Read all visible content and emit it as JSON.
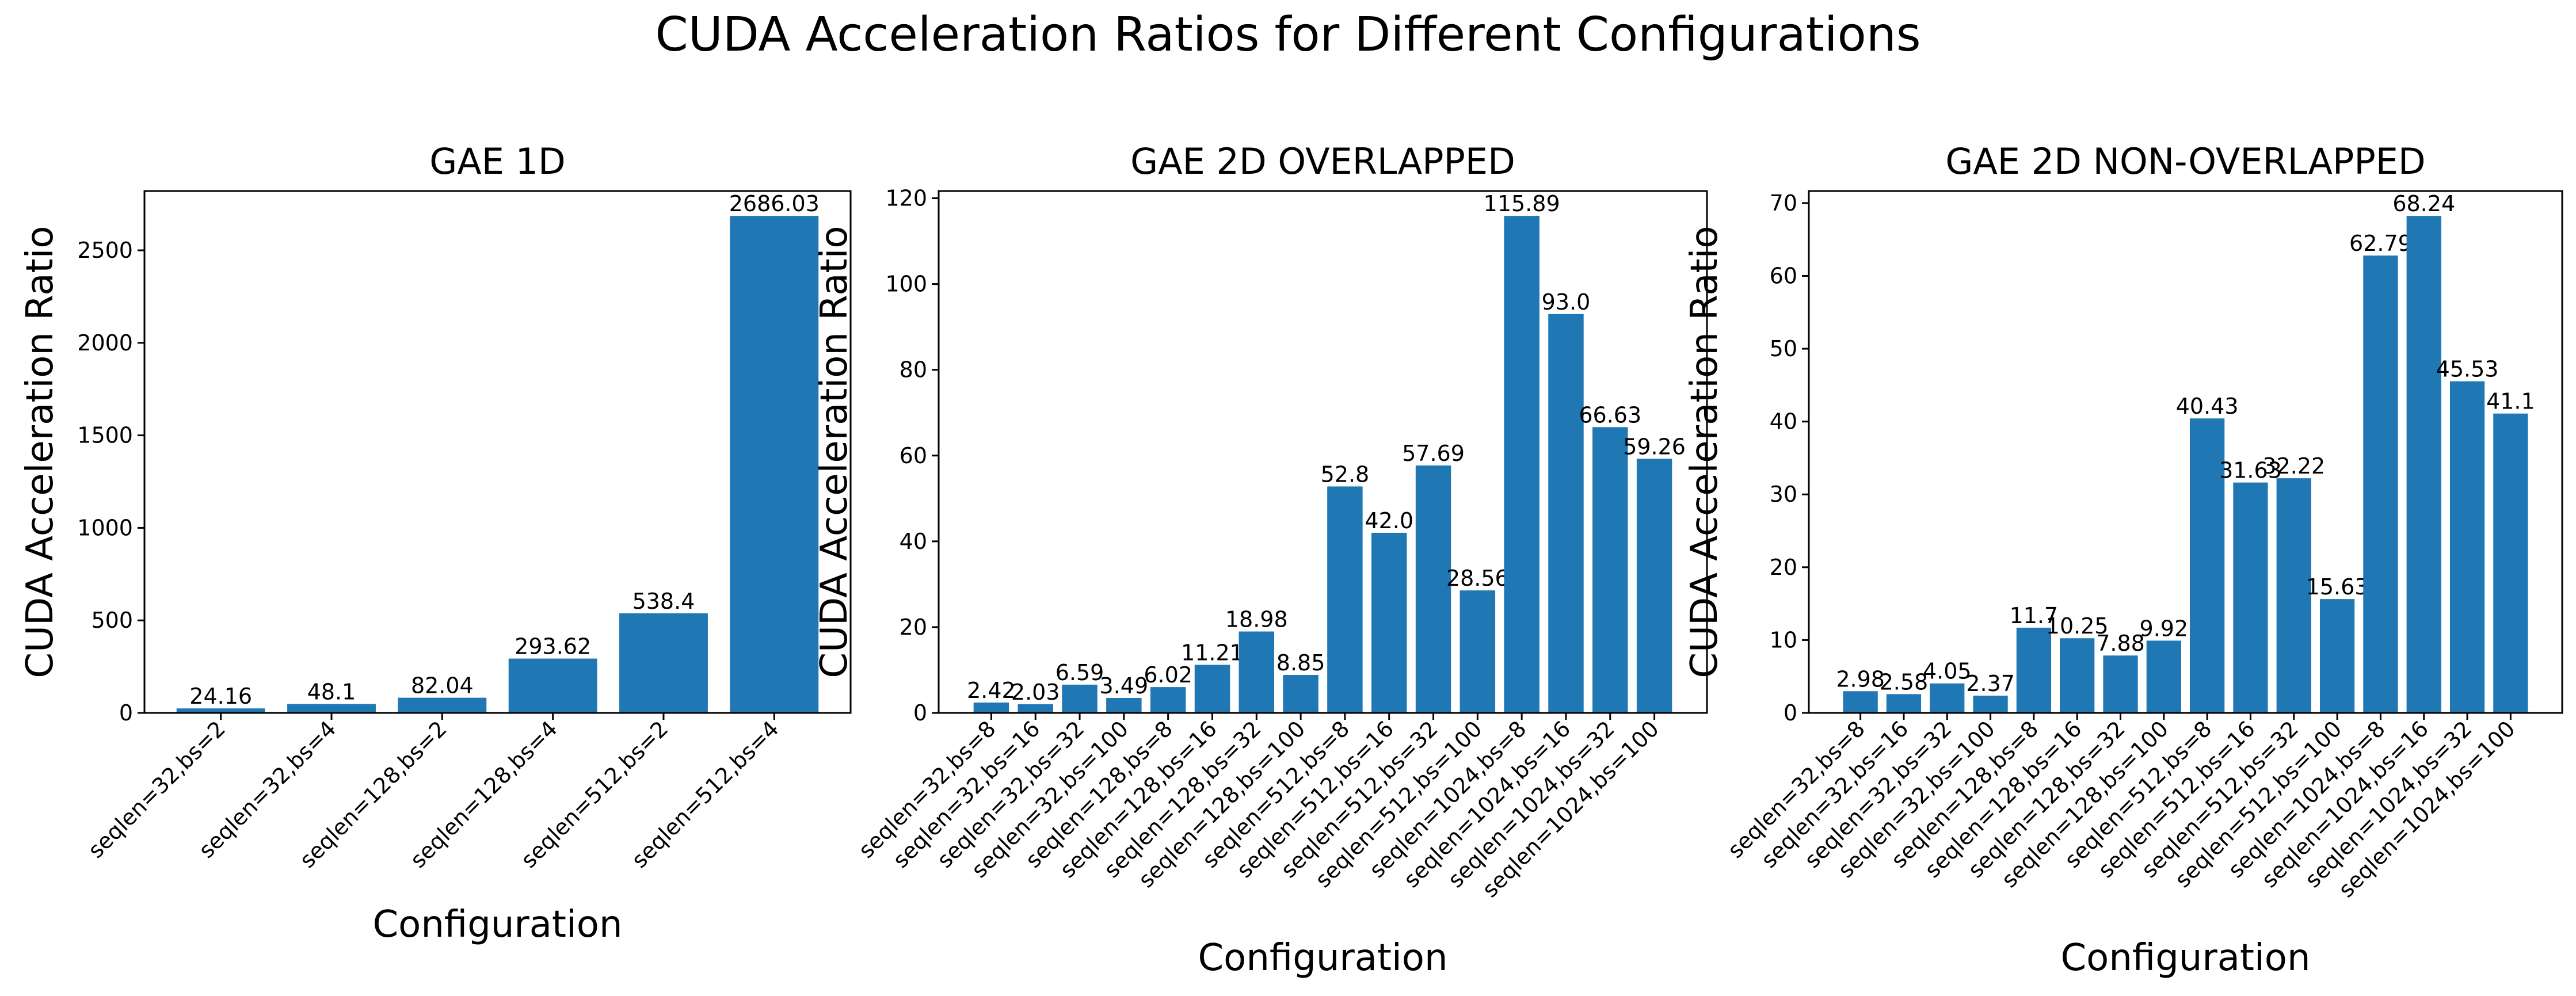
{
  "figure": {
    "title": "CUDA Acceleration Ratios for Different Configurations"
  },
  "colors": {
    "bar": "#1f77b4",
    "axis": "#000000",
    "text": "#000000"
  },
  "chart_data": [
    {
      "type": "bar",
      "title": "GAE 1D",
      "xlabel": "Configuration",
      "ylabel": "CUDA Acceleration Ratio",
      "ylim": [
        0,
        2820.33
      ],
      "yticks": [
        0,
        500,
        1000,
        1500,
        2000,
        2500
      ],
      "grid": false,
      "categories": [
        "seqlen=32,bs=2",
        "seqlen=32,bs=4",
        "seqlen=128,bs=2",
        "seqlen=128,bs=4",
        "seqlen=512,bs=2",
        "seqlen=512,bs=4"
      ],
      "values": [
        24.16,
        48.1,
        82.04,
        293.62,
        538.4,
        2686.03
      ],
      "data_labels": [
        "24.16",
        "48.1",
        "82.04",
        "293.62",
        "538.4",
        "2686.03"
      ]
    },
    {
      "type": "bar",
      "title": "GAE 2D OVERLAPPED",
      "xlabel": "Configuration",
      "ylabel": "CUDA Acceleration Ratio",
      "ylim": [
        0,
        121.68
      ],
      "yticks": [
        0,
        20,
        40,
        60,
        80,
        100,
        120
      ],
      "grid": false,
      "categories": [
        "seqlen=32,bs=8",
        "seqlen=32,bs=16",
        "seqlen=32,bs=32",
        "seqlen=32,bs=100",
        "seqlen=128,bs=8",
        "seqlen=128,bs=16",
        "seqlen=128,bs=32",
        "seqlen=128,bs=100",
        "seqlen=512,bs=8",
        "seqlen=512,bs=16",
        "seqlen=512,bs=32",
        "seqlen=512,bs=100",
        "seqlen=1024,bs=8",
        "seqlen=1024,bs=16",
        "seqlen=1024,bs=32",
        "seqlen=1024,bs=100"
      ],
      "values": [
        2.42,
        2.03,
        6.59,
        3.49,
        6.02,
        11.21,
        18.98,
        8.85,
        52.8,
        42.0,
        57.69,
        28.56,
        115.89,
        93.0,
        66.63,
        59.26
      ],
      "data_labels": [
        "2.42",
        "2.03",
        "6.59",
        "3.49",
        "6.02",
        "11.21",
        "18.98",
        "8.85",
        "52.8",
        "42.0",
        "57.69",
        "28.56",
        "115.89",
        "93.0",
        "66.63",
        "59.26"
      ]
    },
    {
      "type": "bar",
      "title": "GAE 2D NON-OVERLAPPED",
      "xlabel": "Configuration",
      "ylabel": "CUDA Acceleration Ratio",
      "ylim": [
        0,
        71.65
      ],
      "yticks": [
        0,
        10,
        20,
        30,
        40,
        50,
        60,
        70
      ],
      "grid": false,
      "categories": [
        "seqlen=32,bs=8",
        "seqlen=32,bs=16",
        "seqlen=32,bs=32",
        "seqlen=32,bs=100",
        "seqlen=128,bs=8",
        "seqlen=128,bs=16",
        "seqlen=128,bs=32",
        "seqlen=128,bs=100",
        "seqlen=512,bs=8",
        "seqlen=512,bs=16",
        "seqlen=512,bs=32",
        "seqlen=512,bs=100",
        "seqlen=1024,bs=8",
        "seqlen=1024,bs=16",
        "seqlen=1024,bs=32",
        "seqlen=1024,bs=100"
      ],
      "values": [
        2.98,
        2.58,
        4.05,
        2.37,
        11.7,
        10.25,
        7.88,
        9.92,
        40.43,
        31.63,
        32.22,
        15.63,
        62.79,
        68.24,
        45.53,
        41.1
      ],
      "data_labels": [
        "2.98",
        "2.58",
        "4.05",
        "2.37",
        "11.7",
        "10.25",
        "7.88",
        "9.92",
        "40.43",
        "31.63",
        "32.22",
        "15.63",
        "62.79",
        "68.24",
        "45.53",
        "41.1"
      ]
    }
  ]
}
